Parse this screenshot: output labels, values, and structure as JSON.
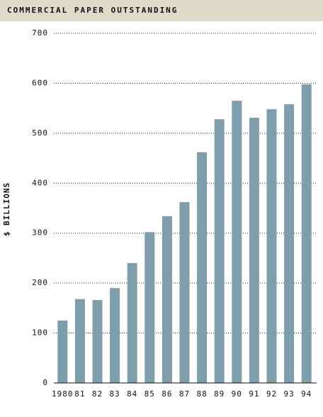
{
  "chart_data": {
    "type": "bar",
    "title": "COMMERCIAL PAPER OUTSTANDING",
    "y_label": "$ BILLIONS",
    "categories": [
      "1980",
      "81",
      "82",
      "83",
      "84",
      "85",
      "86",
      "87",
      "88",
      "89",
      "90",
      "91",
      "92",
      "93",
      "94"
    ],
    "values": [
      125,
      168,
      166,
      190,
      240,
      302,
      334,
      362,
      462,
      528,
      565,
      531,
      548,
      558,
      598
    ],
    "color": "#7f9eab",
    "ylim": [
      0,
      700
    ],
    "yticks": [
      0,
      100,
      200,
      300,
      400,
      500,
      600,
      700
    ],
    "grid": true
  }
}
